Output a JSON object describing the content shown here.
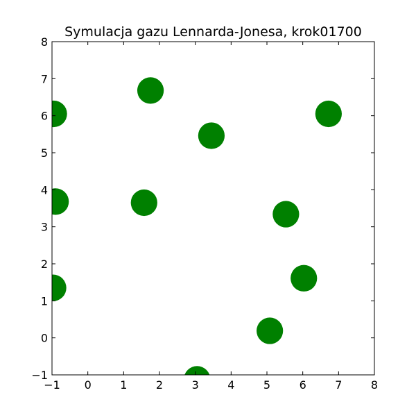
{
  "chart_data": {
    "type": "scatter",
    "title": "Symulacja gazu Lennarda-Jonesa, krok01700",
    "xlabel": "",
    "ylabel": "",
    "xlim": [
      -1,
      8
    ],
    "ylim": [
      -1,
      8
    ],
    "xticks": [
      -1,
      0,
      1,
      2,
      3,
      4,
      5,
      6,
      7,
      8
    ],
    "yticks": [
      -1,
      0,
      1,
      2,
      3,
      4,
      5,
      6,
      7,
      8
    ],
    "xtick_labels": [
      "−1",
      "0",
      "1",
      "2",
      "3",
      "4",
      "5",
      "6",
      "7",
      "8"
    ],
    "ytick_labels": [
      "−1",
      "0",
      "1",
      "2",
      "3",
      "4",
      "5",
      "6",
      "7",
      "8"
    ],
    "grid": false,
    "marker_color": "#008000",
    "marker_radius": 0.37,
    "points": [
      {
        "x": 1.75,
        "y": 6.68
      },
      {
        "x": -0.95,
        "y": 6.05
      },
      {
        "x": 3.45,
        "y": 5.46
      },
      {
        "x": 6.72,
        "y": 6.05
      },
      {
        "x": -0.9,
        "y": 3.68
      },
      {
        "x": 1.57,
        "y": 3.65
      },
      {
        "x": 5.53,
        "y": 3.34
      },
      {
        "x": 6.03,
        "y": 1.61
      },
      {
        "x": -0.97,
        "y": 1.35
      },
      {
        "x": 5.08,
        "y": 0.19
      },
      {
        "x": 3.05,
        "y": -1.12
      }
    ]
  }
}
